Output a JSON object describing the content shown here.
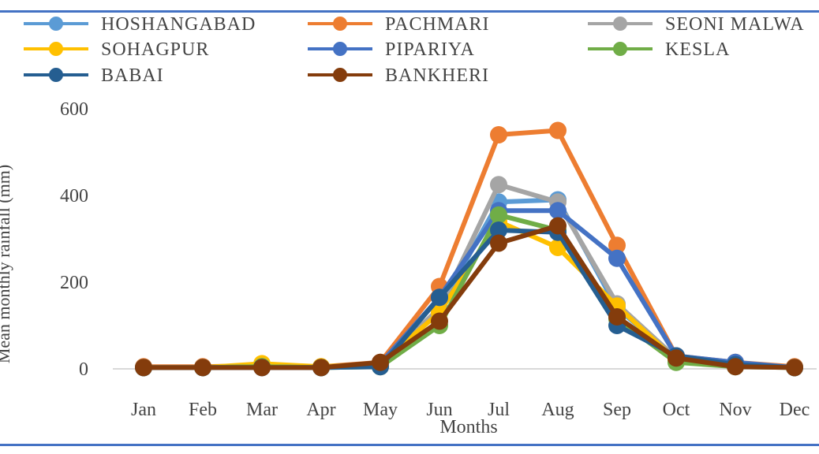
{
  "chart_data": {
    "type": "line",
    "xlabel": "Months",
    "ylabel": "Mean monthly rainfall (mm)",
    "categories": [
      "Jan",
      "Feb",
      "Mar",
      "Apr",
      "May",
      "Jun",
      "Jul",
      "Aug",
      "Sep",
      "Oct",
      "Nov",
      "Dec"
    ],
    "ylim": [
      0,
      600
    ],
    "yticks": [
      0,
      200,
      400,
      600
    ],
    "grid": "horizontal baseline only",
    "legend_position": "top",
    "series": [
      {
        "name": "HOSHANGABAD",
        "color": "#5b9bd5",
        "values": [
          3,
          3,
          5,
          3,
          10,
          140,
          385,
          390,
          140,
          25,
          10,
          3
        ]
      },
      {
        "name": "PACHMARI",
        "color": "#ed7d31",
        "values": [
          5,
          5,
          8,
          5,
          15,
          190,
          540,
          550,
          285,
          30,
          15,
          5
        ]
      },
      {
        "name": "SEONI MALWA",
        "color": "#a5a5a5",
        "values": [
          3,
          3,
          5,
          3,
          10,
          140,
          425,
          385,
          150,
          25,
          10,
          3
        ]
      },
      {
        "name": "SOHAGPUR",
        "color": "#ffc000",
        "values": [
          3,
          3,
          12,
          5,
          12,
          130,
          340,
          280,
          145,
          20,
          10,
          3
        ]
      },
      {
        "name": "PIPARIYA",
        "color": "#4472c4",
        "values": [
          3,
          3,
          5,
          3,
          12,
          165,
          365,
          365,
          255,
          30,
          15,
          3
        ]
      },
      {
        "name": "KESLA",
        "color": "#70ad47",
        "values": [
          3,
          3,
          5,
          3,
          5,
          100,
          355,
          320,
          115,
          15,
          5,
          3
        ]
      },
      {
        "name": "BABAI",
        "color": "#255e91",
        "values": [
          3,
          3,
          3,
          3,
          5,
          165,
          320,
          315,
          100,
          30,
          10,
          3
        ]
      },
      {
        "name": "BANKHERI",
        "color": "#843c0c",
        "values": [
          3,
          3,
          3,
          3,
          15,
          110,
          290,
          330,
          120,
          25,
          5,
          3
        ]
      }
    ]
  }
}
